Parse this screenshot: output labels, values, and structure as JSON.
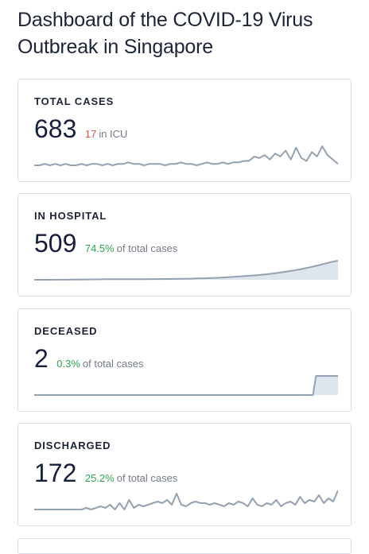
{
  "page": {
    "title": "Dashboard of the COVID-19 Virus Outbreak in Singapore"
  },
  "colors": {
    "icu_red": "#d9534f",
    "percent_green": "#2ea44f",
    "sparkline_stroke": "#93a1b1",
    "sparkline_fill": "#dfe5ec"
  },
  "cards": [
    {
      "id": "total-cases",
      "label": "TOTAL CASES",
      "value": "683",
      "highlight": "17",
      "highlight_color": "#d9534f",
      "suffix": "in ICU",
      "sparkline": [
        0,
        0,
        1,
        0,
        1,
        0,
        1,
        0,
        0,
        1,
        0,
        1,
        1,
        0,
        1,
        0,
        1,
        1,
        2,
        1,
        1,
        0,
        1,
        1,
        1,
        0,
        1,
        1,
        2,
        1,
        1,
        0,
        1,
        2,
        1,
        1,
        2,
        1,
        2,
        2,
        3,
        3,
        6,
        5,
        7,
        4,
        8,
        6,
        10,
        4,
        12,
        5,
        3,
        9,
        6,
        13,
        7,
        4,
        1
      ],
      "sparkline_fill": false
    },
    {
      "id": "in-hospital",
      "label": "IN HOSPITAL",
      "value": "509",
      "highlight": "74.5%",
      "highlight_color": "#2ea44f",
      "suffix": "of total cases",
      "sparkline": [
        3,
        3,
        4,
        5,
        6,
        7,
        9,
        11,
        14,
        16,
        18,
        19,
        20,
        20,
        20,
        20,
        21,
        22,
        24,
        27,
        30,
        33,
        38,
        43,
        50,
        58,
        69,
        80,
        95,
        110,
        125,
        143,
        163,
        190,
        220,
        250,
        285,
        325,
        370,
        420,
        470,
        509
      ],
      "sparkline_fill": true
    },
    {
      "id": "deceased",
      "label": "DECEASED",
      "value": "2",
      "highlight": "0.3%",
      "highlight_color": "#2ea44f",
      "suffix": "of total cases",
      "sparkline": [
        0,
        0,
        0,
        0,
        0,
        0,
        0,
        0,
        0,
        0,
        0,
        0,
        0,
        0,
        0,
        0,
        0,
        0,
        0,
        0,
        0,
        0,
        0,
        0,
        0,
        0,
        0,
        0,
        0,
        0,
        0,
        0,
        0,
        0,
        0,
        0,
        0,
        0,
        0,
        0,
        0,
        0,
        0,
        0,
        0,
        0,
        0,
        0,
        0,
        0,
        0,
        0,
        0,
        0,
        0,
        0,
        0,
        0,
        0,
        0,
        0,
        0,
        0,
        0,
        0,
        0,
        0,
        0,
        0,
        0,
        0,
        0,
        0,
        0,
        0,
        0,
        0,
        0,
        0,
        0,
        0,
        0,
        0,
        0,
        0,
        0,
        0,
        0,
        0,
        0,
        2,
        2,
        2,
        2,
        2,
        2,
        2,
        2
      ],
      "sparkline_fill": true
    },
    {
      "id": "discharged",
      "label": "DISCHARGED",
      "value": "172",
      "highlight": "25.2%",
      "highlight_color": "#2ea44f",
      "suffix": "of total cases",
      "sparkline": [
        0,
        0,
        0,
        0,
        0,
        0,
        0,
        0,
        0,
        0,
        0,
        1,
        0,
        1,
        2,
        1,
        3,
        0,
        4,
        0,
        6,
        1,
        3,
        2,
        3,
        4,
        5,
        4,
        6,
        3,
        10,
        3,
        2,
        4,
        5,
        4,
        4,
        3,
        4,
        3,
        2,
        4,
        3,
        5,
        4,
        2,
        7,
        3,
        2,
        4,
        3,
        6,
        2,
        4,
        5,
        3,
        8,
        4,
        6,
        5,
        9,
        4,
        7,
        5,
        12
      ],
      "sparkline_fill": false
    }
  ]
}
